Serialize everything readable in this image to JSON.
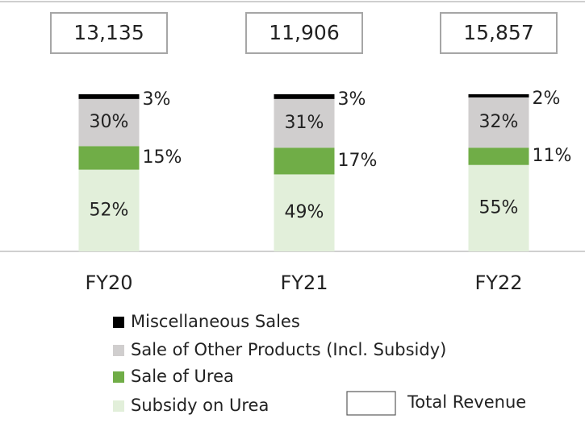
{
  "chart_data": {
    "type": "bar",
    "stacked": true,
    "categories": [
      "FY20",
      "FY21",
      "FY22"
    ],
    "ylim": [
      0,
      100
    ],
    "series": [
      {
        "name": "Subsidy on Urea",
        "color": "#e2efda",
        "values": [
          52,
          49,
          55
        ],
        "value_labels": [
          "52%",
          "49%",
          "55%"
        ]
      },
      {
        "name": "Sale of Urea",
        "color": "#70ad47",
        "values": [
          15,
          17,
          11
        ],
        "value_labels": [
          "15%",
          "17%",
          "11%"
        ]
      },
      {
        "name": "Sale of Other Products (Incl. Subsidy)",
        "color": "#d0cece",
        "values": [
          30,
          31,
          32
        ],
        "value_labels": [
          "30%",
          "31%",
          "32%"
        ]
      },
      {
        "name": "Miscellaneous Sales",
        "color": "#000000",
        "values": [
          3,
          3,
          2
        ],
        "value_labels": [
          "3%",
          "3%",
          "2%"
        ]
      }
    ],
    "totals": {
      "name": "Total Revenue",
      "values": [
        13135,
        11906,
        15857
      ],
      "value_labels": [
        "13,135",
        "11,906",
        "15,857"
      ]
    }
  }
}
